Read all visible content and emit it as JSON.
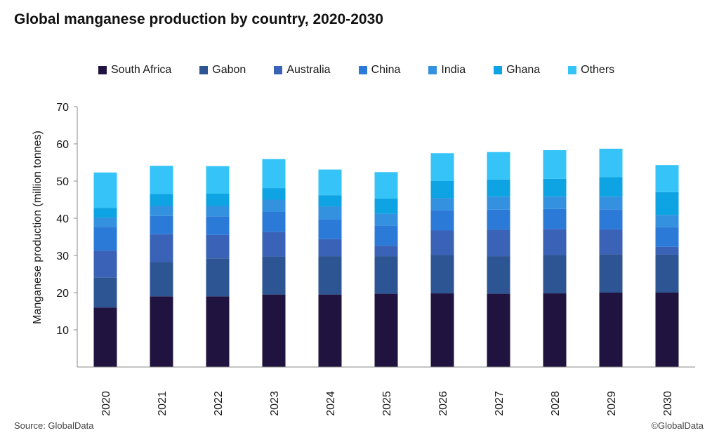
{
  "chart_data": {
    "type": "bar",
    "stacked": true,
    "title": "Global manganese production by country, 2020-2030",
    "xlabel": "",
    "ylabel": "Manganese production (million tonnes)",
    "ylim": [
      0,
      70
    ],
    "yticks": [
      10,
      20,
      30,
      40,
      50,
      60,
      70
    ],
    "grid": false,
    "legend_position": "top",
    "categories": [
      "2020",
      "2021",
      "2022",
      "2023",
      "2024",
      "2025",
      "2026",
      "2027",
      "2028",
      "2029",
      "2030"
    ],
    "series": [
      {
        "name": "South Africa",
        "color": "#21133f",
        "values": [
          16.0,
          19.0,
          19.0,
          19.5,
          19.5,
          19.7,
          19.8,
          19.7,
          19.8,
          20.0,
          20.0
        ]
      },
      {
        "name": "Gabon",
        "color": "#2e5593",
        "values": [
          8.1,
          9.2,
          10.2,
          10.2,
          10.3,
          10.1,
          10.3,
          10.1,
          10.3,
          10.3,
          10.2
        ]
      },
      {
        "name": "Australia",
        "color": "#3a62b6",
        "values": [
          7.2,
          7.5,
          6.3,
          6.6,
          4.6,
          2.8,
          6.6,
          7.1,
          7.0,
          6.7,
          2.1
        ]
      },
      {
        "name": "China",
        "color": "#2c7ad8",
        "values": [
          6.4,
          4.9,
          5.0,
          5.4,
          5.3,
          5.4,
          5.4,
          5.4,
          5.4,
          5.4,
          5.3
        ]
      },
      {
        "name": "India",
        "color": "#3391df",
        "values": [
          2.5,
          2.7,
          2.8,
          3.3,
          3.5,
          3.2,
          3.3,
          3.5,
          3.3,
          3.4,
          3.3
        ]
      },
      {
        "name": "Ghana",
        "color": "#0ea3e2",
        "values": [
          2.6,
          3.2,
          3.3,
          3.1,
          3.0,
          4.1,
          4.6,
          4.6,
          4.8,
          5.3,
          6.1
        ]
      },
      {
        "name": "Others",
        "color": "#36c3f7",
        "values": [
          9.5,
          7.6,
          7.4,
          7.8,
          6.9,
          7.1,
          7.5,
          7.4,
          7.7,
          7.6,
          7.3
        ]
      }
    ]
  },
  "footer": {
    "source": "Source: GlobalData",
    "copyright": "©GlobalData"
  }
}
